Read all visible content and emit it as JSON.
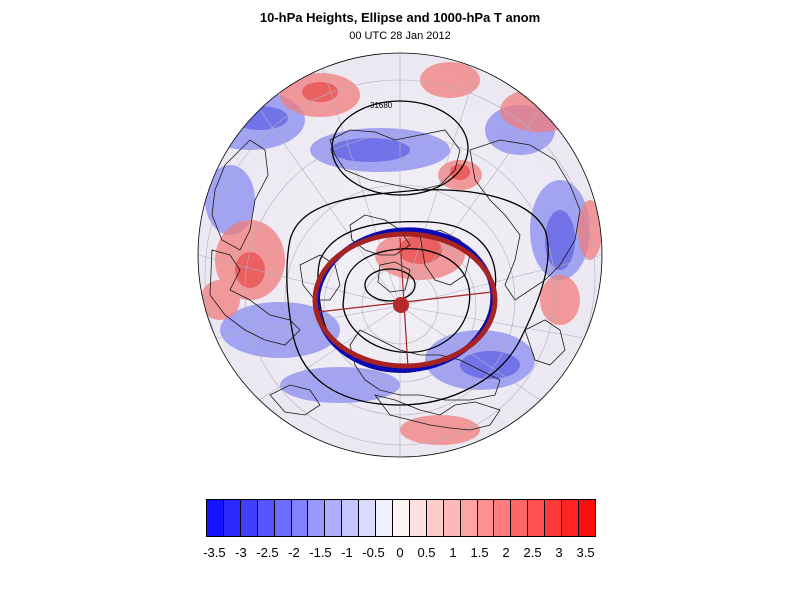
{
  "title": "10-hPa Heights, Ellipse and 1000-hPa T anom",
  "subtitle": "00 UTC 28 Jan 2012",
  "map": {
    "projection": "polar stereographic (Northern Hemisphere)",
    "contour_label": "31680",
    "colors": {
      "ellipse_observed": "#0a0ab4",
      "ellipse_fit": "#a52323",
      "center_marker": "#b52a2a",
      "contour_lines": "#000000",
      "coastlines": "#1a1a1a",
      "gridlines": "#b0b0c0"
    }
  },
  "colorbar": {
    "colors": [
      "#1414ff",
      "#2a2aff",
      "#4040ff",
      "#5656ff",
      "#6c6cff",
      "#8282ff",
      "#9898ff",
      "#aeaeff",
      "#c4c4ff",
      "#dadaff",
      "#f0f0ff",
      "#fff4f4",
      "#ffe0e0",
      "#ffcccc",
      "#ffb8b8",
      "#ffa4a4",
      "#ff9090",
      "#ff7c7c",
      "#ff6666",
      "#ff5050",
      "#ff3a3a",
      "#ff2424",
      "#ff0e0e"
    ],
    "labels": [
      "-3.5",
      "-3",
      "-2.5",
      "-2",
      "-1.5",
      "-1",
      "-0.5",
      "0",
      "0.5",
      "1",
      "1.5",
      "2",
      "2.5",
      "3",
      "3.5"
    ]
  }
}
